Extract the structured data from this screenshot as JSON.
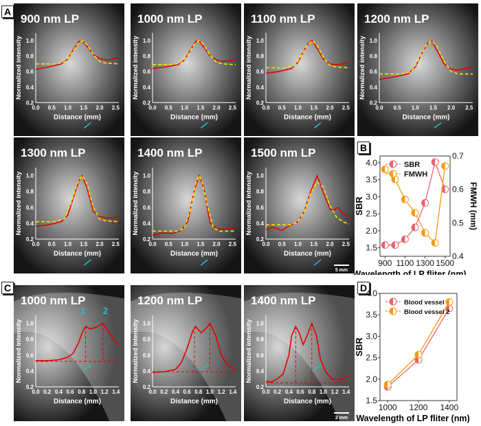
{
  "panel_labels": [
    "A",
    "B",
    "C",
    "D"
  ],
  "chart_data": [
    {
      "type": "line",
      "panel": "A",
      "title": "900 nm LP",
      "xlabel": "Distance (mm)",
      "ylabel": "Normalized intensity",
      "xlim": [
        0,
        2.6
      ],
      "ylim": [
        0.2,
        1.1
      ],
      "xticks": [
        "0.0",
        "0.5",
        "1.0",
        "1.5",
        "2.0",
        "2.5"
      ],
      "yticks": [
        "0.2",
        "0.4",
        "0.6",
        "0.8",
        "1.0"
      ],
      "series": [
        {
          "name": "profile",
          "color": "#e00000",
          "x": [
            0,
            0.4,
            0.8,
            1.0,
            1.2,
            1.35,
            1.45,
            1.6,
            1.8,
            2.0,
            2.2,
            2.4,
            2.6
          ],
          "y": [
            0.63,
            0.66,
            0.7,
            0.76,
            0.9,
            0.99,
            1.0,
            0.93,
            0.82,
            0.77,
            0.75,
            0.76,
            0.78
          ]
        },
        {
          "name": "fit",
          "color": "#f0e000",
          "dashed": true,
          "x": [
            0,
            0.6,
            0.9,
            1.1,
            1.3,
            1.45,
            1.6,
            1.8,
            2.0,
            2.2,
            2.6
          ],
          "y": [
            0.7,
            0.7,
            0.72,
            0.82,
            0.95,
            1.0,
            0.95,
            0.82,
            0.73,
            0.71,
            0.7
          ]
        }
      ]
    },
    {
      "type": "line",
      "panel": "A",
      "title": "1000 nm LP",
      "xlabel": "Distance (mm)",
      "ylabel": "Normalized intensity",
      "xlim": [
        0,
        2.6
      ],
      "ylim": [
        0.2,
        1.1
      ],
      "xticks": [
        "0.0",
        "0.5",
        "1.0",
        "1.5",
        "2.0",
        "2.5"
      ],
      "yticks": [
        "0.2",
        "0.4",
        "0.6",
        "0.8",
        "1.0"
      ],
      "series": [
        {
          "name": "profile",
          "color": "#e00000",
          "x": [
            0,
            0.4,
            0.8,
            1.0,
            1.2,
            1.35,
            1.45,
            1.6,
            1.8,
            2.0,
            2.2,
            2.4,
            2.6
          ],
          "y": [
            0.64,
            0.66,
            0.69,
            0.75,
            0.89,
            0.99,
            1.0,
            0.92,
            0.8,
            0.75,
            0.73,
            0.74,
            0.76
          ]
        },
        {
          "name": "fit",
          "color": "#f0e000",
          "dashed": true,
          "x": [
            0,
            0.6,
            0.9,
            1.1,
            1.3,
            1.45,
            1.6,
            1.8,
            2.0,
            2.2,
            2.6
          ],
          "y": [
            0.69,
            0.69,
            0.71,
            0.81,
            0.95,
            1.0,
            0.95,
            0.81,
            0.72,
            0.7,
            0.69
          ]
        }
      ]
    },
    {
      "type": "line",
      "panel": "A",
      "title": "1100 nm LP",
      "xlabel": "Distance (mm)",
      "ylabel": "Normalized intensity",
      "xlim": [
        0,
        2.6
      ],
      "ylim": [
        0.2,
        1.1
      ],
      "xticks": [
        "0.0",
        "0.5",
        "1.0",
        "1.5",
        "2.0",
        "2.5"
      ],
      "yticks": [
        "0.2",
        "0.4",
        "0.6",
        "0.8",
        "1.0"
      ],
      "series": [
        {
          "name": "profile",
          "color": "#e00000",
          "x": [
            0,
            0.4,
            0.8,
            1.0,
            1.2,
            1.35,
            1.45,
            1.6,
            1.8,
            2.0,
            2.2,
            2.4,
            2.6
          ],
          "y": [
            0.58,
            0.6,
            0.64,
            0.72,
            0.88,
            0.98,
            1.0,
            0.9,
            0.76,
            0.7,
            0.69,
            0.7,
            0.72
          ]
        },
        {
          "name": "fit",
          "color": "#f0e000",
          "dashed": true,
          "x": [
            0,
            0.6,
            0.9,
            1.1,
            1.3,
            1.45,
            1.6,
            1.8,
            2.0,
            2.2,
            2.6
          ],
          "y": [
            0.65,
            0.65,
            0.68,
            0.8,
            0.95,
            1.0,
            0.94,
            0.78,
            0.68,
            0.66,
            0.65
          ]
        }
      ]
    },
    {
      "type": "line",
      "panel": "A",
      "title": "1200 nm LP",
      "xlabel": "Distance (mm)",
      "ylabel": "Normalized intensity",
      "xlim": [
        0,
        2.6
      ],
      "ylim": [
        0.2,
        1.1
      ],
      "xticks": [
        "0.0",
        "0.5",
        "1.0",
        "1.5",
        "2.0",
        "2.5"
      ],
      "yticks": [
        "0.2",
        "0.4",
        "0.6",
        "0.8",
        "1.0"
      ],
      "series": [
        {
          "name": "profile",
          "color": "#e00000",
          "x": [
            0,
            0.4,
            0.8,
            1.0,
            1.2,
            1.35,
            1.45,
            1.6,
            1.8,
            2.0,
            2.2,
            2.4,
            2.6
          ],
          "y": [
            0.5,
            0.53,
            0.57,
            0.66,
            0.85,
            0.97,
            1.0,
            0.88,
            0.7,
            0.63,
            0.62,
            0.64,
            0.66
          ]
        },
        {
          "name": "fit",
          "color": "#f0e000",
          "dashed": true,
          "x": [
            0,
            0.6,
            0.9,
            1.1,
            1.3,
            1.45,
            1.6,
            1.8,
            2.0,
            2.2,
            2.6
          ],
          "y": [
            0.57,
            0.57,
            0.6,
            0.76,
            0.94,
            1.0,
            0.93,
            0.74,
            0.6,
            0.57,
            0.57
          ]
        }
      ]
    },
    {
      "type": "line",
      "panel": "A",
      "title": "1300 nm LP",
      "xlabel": "Distance (mm)",
      "ylabel": "Normalized intensity",
      "xlim": [
        0,
        2.6
      ],
      "ylim": [
        0.2,
        1.1
      ],
      "xticks": [
        "0.0",
        "0.5",
        "1.0",
        "1.5",
        "2.0",
        "2.5"
      ],
      "yticks": [
        "0.2",
        "0.4",
        "0.6",
        "0.8",
        "1.0"
      ],
      "series": [
        {
          "name": "profile",
          "color": "#e00000",
          "x": [
            0,
            0.4,
            0.8,
            1.0,
            1.2,
            1.35,
            1.45,
            1.6,
            1.8,
            2.0,
            2.2,
            2.4,
            2.6
          ],
          "y": [
            0.36,
            0.38,
            0.42,
            0.5,
            0.75,
            0.93,
            1.0,
            0.85,
            0.55,
            0.48,
            0.47,
            0.47,
            0.48
          ]
        },
        {
          "name": "fit",
          "color": "#f0e000",
          "dashed": true,
          "x": [
            0,
            0.6,
            0.9,
            1.1,
            1.3,
            1.45,
            1.6,
            1.8,
            2.0,
            2.2,
            2.6
          ],
          "y": [
            0.42,
            0.42,
            0.46,
            0.65,
            0.9,
            1.0,
            0.9,
            0.6,
            0.45,
            0.43,
            0.42
          ]
        }
      ]
    },
    {
      "type": "line",
      "panel": "A",
      "title": "1400 nm LP",
      "xlabel": "Distance (mm)",
      "ylabel": "Normalized intensity",
      "xlim": [
        0,
        2.6
      ],
      "ylim": [
        0.2,
        1.1
      ],
      "xticks": [
        "0.0",
        "0.5",
        "1.0",
        "1.5",
        "2.0",
        "2.5"
      ],
      "yticks": [
        "0.2",
        "0.4",
        "0.6",
        "0.8",
        "1.0"
      ],
      "series": [
        {
          "name": "profile",
          "color": "#e00000",
          "x": [
            0,
            0.3,
            0.6,
            0.9,
            1.1,
            1.3,
            1.45,
            1.6,
            1.8,
            2.0,
            2.2,
            2.4,
            2.6
          ],
          "y": [
            0.25,
            0.28,
            0.27,
            0.31,
            0.42,
            0.8,
            1.0,
            0.85,
            0.4,
            0.33,
            0.32,
            0.33,
            0.35
          ]
        },
        {
          "name": "fit",
          "color": "#f0e000",
          "dashed": true,
          "x": [
            0,
            0.8,
            1.0,
            1.2,
            1.35,
            1.45,
            1.55,
            1.7,
            1.9,
            2.1,
            2.6
          ],
          "y": [
            0.3,
            0.3,
            0.34,
            0.6,
            0.9,
            1.0,
            0.92,
            0.65,
            0.34,
            0.3,
            0.3
          ]
        }
      ]
    },
    {
      "type": "line",
      "panel": "A",
      "title": "1500 nm LP",
      "xlabel": "Distance (mm)",
      "ylabel": "Normalized intensity",
      "xlim": [
        0,
        2.6
      ],
      "ylim": [
        0.2,
        1.1
      ],
      "xticks": [
        "0.0",
        "0.5",
        "1.0",
        "1.5",
        "2.0",
        "2.5"
      ],
      "yticks": [
        "0.2",
        "0.4",
        "0.6",
        "0.8",
        "1.0"
      ],
      "series": [
        {
          "name": "profile",
          "color": "#e00000",
          "x": [
            0,
            0.2,
            0.5,
            0.7,
            1.0,
            1.2,
            1.4,
            1.6,
            1.8,
            2.0,
            2.1,
            2.25,
            2.4,
            2.6
          ],
          "y": [
            0.32,
            0.35,
            0.31,
            0.36,
            0.42,
            0.55,
            0.8,
            1.0,
            0.78,
            0.58,
            0.56,
            0.6,
            0.52,
            0.48
          ]
        },
        {
          "name": "fit",
          "color": "#f0e000",
          "dashed": true,
          "x": [
            0,
            0.8,
            1.0,
            1.2,
            1.4,
            1.6,
            1.8,
            2.0,
            2.2,
            2.4,
            2.6
          ],
          "y": [
            0.38,
            0.38,
            0.42,
            0.55,
            0.78,
            0.92,
            0.85,
            0.62,
            0.48,
            0.42,
            0.39
          ]
        }
      ]
    },
    {
      "type": "line",
      "panel": "B",
      "title": "",
      "xlabel": "Wavelength of LP fliter (nm)",
      "ylabel": "SBR",
      "y2label": "FMWH (mm)",
      "xlim": [
        850,
        1550
      ],
      "ylim": [
        1.25,
        4.2
      ],
      "y2lim": [
        0.4,
        0.7
      ],
      "xticks": [
        "900",
        "1100",
        "1300",
        "1500"
      ],
      "yticks": [
        "1.5",
        "2.0",
        "2.5",
        "3.0",
        "3.5",
        "4.0"
      ],
      "y2ticks": [
        "0.4",
        "0.5",
        "0.6",
        "0.7"
      ],
      "legend": "top-left",
      "x": [
        900,
        1000,
        1100,
        1200,
        1300,
        1400,
        1500
      ],
      "series": [
        {
          "name": "SBR",
          "axis": "left",
          "color": "#e8646e",
          "values": [
            1.58,
            1.58,
            1.75,
            2.1,
            2.82,
            4.02,
            3.22
          ]
        },
        {
          "name": "FMWH",
          "axis": "right",
          "color": "#f59a14",
          "values": [
            0.66,
            0.63,
            0.57,
            0.53,
            0.47,
            0.44,
            0.67
          ]
        }
      ]
    },
    {
      "type": "line",
      "panel": "C",
      "title": "1000 nm LP",
      "xlabel": "Distance (mm)",
      "ylabel": "Normalized intensity",
      "xlim": [
        0,
        1.45
      ],
      "ylim": [
        0.2,
        1.1
      ],
      "xticks": [
        "0.0",
        "0.2",
        "0.4",
        "0.6",
        "0.8",
        "1.0",
        "1.2",
        "1.4"
      ],
      "yticks": [
        "0.2",
        "0.4",
        "0.6",
        "0.8",
        "1.0"
      ],
      "baseline": 0.52,
      "peaks": [
        0.87,
        1.17
      ],
      "peak_labels": [
        "1",
        "2"
      ],
      "series": [
        {
          "name": "profile",
          "color": "#e00000",
          "x": [
            0,
            0.2,
            0.4,
            0.55,
            0.65,
            0.75,
            0.82,
            0.87,
            0.95,
            1.05,
            1.17,
            1.25,
            1.35,
            1.45
          ],
          "y": [
            0.53,
            0.53,
            0.54,
            0.57,
            0.62,
            0.76,
            0.9,
            0.96,
            0.93,
            0.95,
            1.0,
            0.92,
            0.8,
            0.72
          ]
        }
      ]
    },
    {
      "type": "line",
      "panel": "C",
      "title": "1200 nm LP",
      "xlabel": "Distance (mm)",
      "ylabel": "Normalized intensity",
      "xlim": [
        0,
        1.45
      ],
      "ylim": [
        0.2,
        1.1
      ],
      "xticks": [
        "0.0",
        "0.2",
        "0.4",
        "0.6",
        "0.8",
        "1.0",
        "1.2",
        "1.4"
      ],
      "yticks": [
        "0.2",
        "0.4",
        "0.6",
        "0.8",
        "1.0"
      ],
      "baseline": 0.39,
      "peaks": [
        0.73,
        1.0
      ],
      "series": [
        {
          "name": "profile",
          "color": "#e00000",
          "x": [
            0,
            0.2,
            0.4,
            0.5,
            0.6,
            0.7,
            0.75,
            0.85,
            0.95,
            1.0,
            1.1,
            1.2,
            1.3,
            1.45
          ],
          "y": [
            0.38,
            0.39,
            0.42,
            0.5,
            0.68,
            0.9,
            0.96,
            0.88,
            0.95,
            1.0,
            0.85,
            0.6,
            0.48,
            0.42
          ]
        }
      ]
    },
    {
      "type": "line",
      "panel": "C",
      "title": "1400 nm LP",
      "xlabel": "Distance (mm)",
      "ylabel": "Normalized intensity",
      "xlim": [
        0,
        1.45
      ],
      "ylim": [
        0.2,
        1.1
      ],
      "xticks": [
        "0.0",
        "0.2",
        "0.4",
        "0.6",
        "0.8",
        "1.0",
        "1.2",
        "1.4"
      ],
      "yticks": [
        "0.2",
        "0.4",
        "0.6",
        "0.8",
        "1.0"
      ],
      "baseline": 0.25,
      "peaks": [
        0.52,
        0.8
      ],
      "series": [
        {
          "name": "profile",
          "color": "#e00000",
          "x": [
            0,
            0.1,
            0.2,
            0.3,
            0.4,
            0.45,
            0.52,
            0.58,
            0.65,
            0.72,
            0.8,
            0.88,
            0.95,
            1.05,
            1.15,
            1.25,
            1.35,
            1.45
          ],
          "y": [
            0.27,
            0.26,
            0.3,
            0.36,
            0.6,
            0.85,
            0.96,
            0.88,
            0.73,
            0.85,
            1.0,
            0.85,
            0.55,
            0.38,
            0.3,
            0.29,
            0.3,
            0.35
          ]
        }
      ]
    },
    {
      "type": "line",
      "panel": "D",
      "title": "",
      "xlabel": "Wavelength of LP fliter (nm)",
      "ylabel": "SBR",
      "xlim": [
        950,
        1450
      ],
      "ylim": [
        1.5,
        4.0
      ],
      "xticks": [
        "1000",
        "1200",
        "1400"
      ],
      "yticks": [
        "1.5",
        "2.0",
        "2.5",
        "3.0",
        "3.5",
        "4.0"
      ],
      "legend": "top-left",
      "x": [
        1000,
        1200,
        1400
      ],
      "series": [
        {
          "name": "Blood vessel 1",
          "color": "#e8646e",
          "values": [
            1.82,
            2.45,
            3.65
          ]
        },
        {
          "name": "Blood vessel 2",
          "color": "#f59a14",
          "values": [
            1.87,
            2.57,
            3.8
          ]
        }
      ]
    }
  ],
  "scale_bars": {
    "A": "5 mm",
    "C": "2 mm"
  }
}
